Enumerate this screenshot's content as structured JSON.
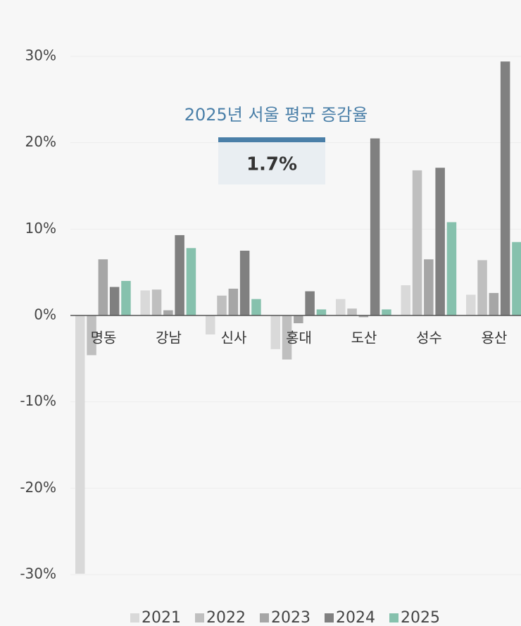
{
  "chart_data": {
    "type": "bar",
    "categories": [
      "명동",
      "강남",
      "신사",
      "홍대",
      "도산",
      "성수",
      "용산"
    ],
    "series": [
      {
        "name": "2021",
        "color": "#d9d9d9",
        "values": [
          -29.9,
          2.9,
          -2.2,
          -3.9,
          1.9,
          3.5,
          2.4
        ]
      },
      {
        "name": "2022",
        "color": "#bfbfbf",
        "values": [
          -4.6,
          3.0,
          2.3,
          -5.1,
          0.8,
          16.8,
          6.4
        ]
      },
      {
        "name": "2023",
        "color": "#a6a6a6",
        "values": [
          6.5,
          0.6,
          3.1,
          -0.9,
          -0.2,
          6.5,
          2.6
        ]
      },
      {
        "name": "2024",
        "color": "#808080",
        "values": [
          3.3,
          9.3,
          7.5,
          2.8,
          20.5,
          17.1,
          29.4
        ]
      },
      {
        "name": "2025",
        "color": "#86c1ad",
        "values": [
          4.0,
          7.8,
          1.9,
          0.7,
          0.7,
          10.8,
          8.5
        ]
      }
    ],
    "ylim": [
      -30,
      30
    ],
    "yticks": [
      {
        "value": -30,
        "label": "-30%"
      },
      {
        "value": -20,
        "label": "-20%"
      },
      {
        "value": -10,
        "label": "-10%"
      },
      {
        "value": 0,
        "label": "0%"
      },
      {
        "value": 10,
        "label": "10%"
      },
      {
        "value": 20,
        "label": "20%"
      },
      {
        "value": 30,
        "label": "30%"
      }
    ],
    "grid": true,
    "annotation": {
      "title": "2025년 서울 평균 증감율",
      "label": "1.7%"
    },
    "legend": "bottom"
  }
}
